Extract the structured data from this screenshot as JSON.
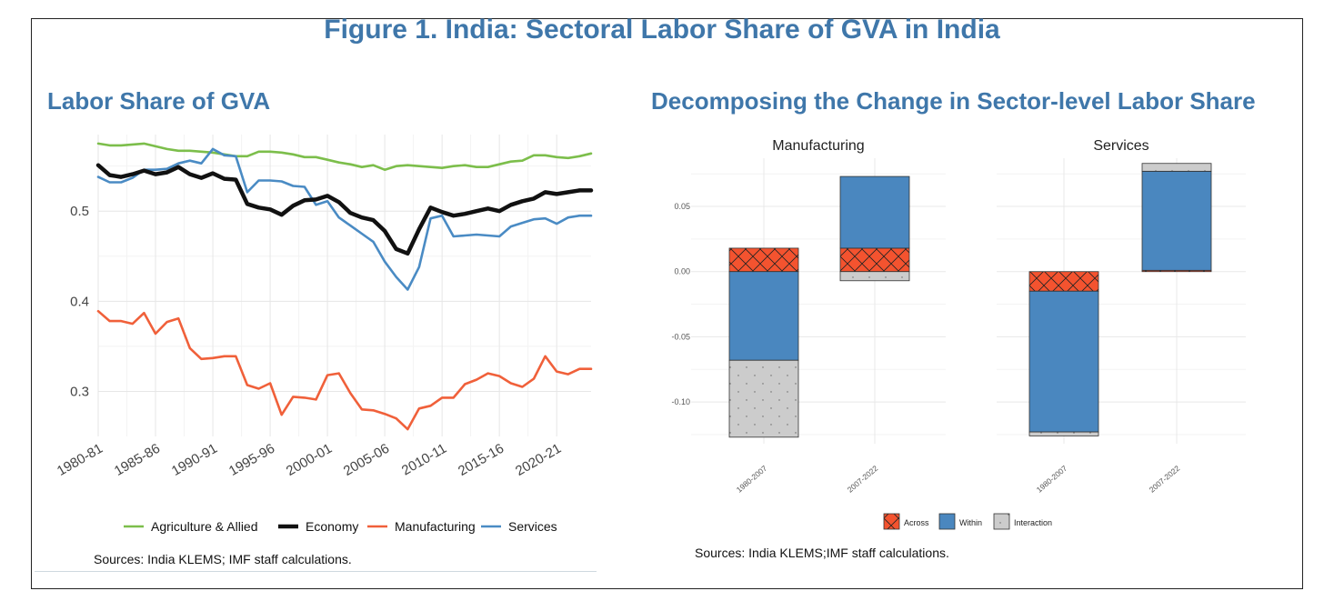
{
  "figure": {
    "title": "Figure 1. India: Sectoral Labor Share of GVA in India",
    "left_title": "Labor Share of GVA",
    "right_title": "Decomposing the Change in Sector-level Labor Share",
    "left_source": "Sources: India KLEMS; IMF staff calculations.",
    "right_source": "Sources: India KLEMS;IMF staff calculations."
  },
  "chart_data": [
    {
      "type": "line",
      "x_tick_labels": [
        "1980-81",
        "1985-86",
        "1990-91",
        "1995-96",
        "2000-01",
        "2005-06",
        "2010-11",
        "2015-16",
        "2020-21"
      ],
      "x_tick_years": [
        1980,
        1985,
        1990,
        1995,
        2000,
        2005,
        2010,
        2015,
        2020
      ],
      "x": [
        1980,
        1981,
        1982,
        1983,
        1984,
        1985,
        1986,
        1987,
        1988,
        1989,
        1990,
        1991,
        1992,
        1993,
        1994,
        1995,
        1996,
        1997,
        1998,
        1999,
        2000,
        2001,
        2002,
        2003,
        2004,
        2005,
        2006,
        2007,
        2008,
        2009,
        2010,
        2011,
        2012,
        2013,
        2014,
        2015,
        2016,
        2017,
        2018,
        2019,
        2020,
        2021,
        2022,
        2023
      ],
      "xlim": [
        1980,
        2023
      ],
      "y_ticks": [
        0.3,
        0.4,
        0.5
      ],
      "y_tick_labels": [
        "0.3",
        "0.4",
        "0.5"
      ],
      "ylim": [
        0.25,
        0.585
      ],
      "grid": true,
      "legend_position": "bottom",
      "series": [
        {
          "name": "Agriculture & Allied",
          "color": "#7cbe4b",
          "width": 2.6,
          "values": [
            0.575,
            0.573,
            0.573,
            0.574,
            0.575,
            0.572,
            0.569,
            0.567,
            0.567,
            0.566,
            0.565,
            0.563,
            0.561,
            0.561,
            0.566,
            0.566,
            0.565,
            0.563,
            0.56,
            0.56,
            0.557,
            0.554,
            0.552,
            0.549,
            0.551,
            0.546,
            0.55,
            0.551,
            0.55,
            0.549,
            0.548,
            0.55,
            0.551,
            0.549,
            0.549,
            0.552,
            0.555,
            0.556,
            0.562,
            0.562,
            0.56,
            0.559,
            0.561,
            0.564
          ]
        },
        {
          "name": "Economy",
          "color": "#111111",
          "width": 4.5,
          "values": [
            0.551,
            0.54,
            0.538,
            0.541,
            0.545,
            0.541,
            0.543,
            0.549,
            0.541,
            0.537,
            0.542,
            0.536,
            0.535,
            0.508,
            0.504,
            0.502,
            0.496,
            0.506,
            0.512,
            0.513,
            0.517,
            0.51,
            0.498,
            0.493,
            0.49,
            0.478,
            0.458,
            0.453,
            0.48,
            0.504,
            0.499,
            0.495,
            0.497,
            0.5,
            0.503,
            0.5,
            0.507,
            0.511,
            0.514,
            0.521,
            0.519,
            0.521,
            0.523,
            0.523
          ]
        },
        {
          "name": "Manufacturing",
          "color": "#f0603a",
          "width": 2.6,
          "values": [
            0.389,
            0.378,
            0.378,
            0.375,
            0.387,
            0.364,
            0.377,
            0.381,
            0.348,
            0.336,
            0.337,
            0.339,
            0.339,
            0.307,
            0.303,
            0.309,
            0.274,
            0.294,
            0.293,
            0.291,
            0.318,
            0.32,
            0.298,
            0.28,
            0.279,
            0.275,
            0.27,
            0.258,
            0.281,
            0.284,
            0.293,
            0.293,
            0.308,
            0.313,
            0.32,
            0.317,
            0.309,
            0.305,
            0.314,
            0.339,
            0.322,
            0.319,
            0.325,
            0.325
          ]
        },
        {
          "name": "Services",
          "color": "#4a8bc4",
          "width": 2.6,
          "values": [
            0.538,
            0.532,
            0.532,
            0.537,
            0.546,
            0.546,
            0.547,
            0.553,
            0.556,
            0.553,
            0.569,
            0.562,
            0.561,
            0.521,
            0.534,
            0.534,
            0.533,
            0.528,
            0.527,
            0.507,
            0.511,
            0.493,
            0.484,
            0.475,
            0.466,
            0.444,
            0.427,
            0.413,
            0.438,
            0.492,
            0.495,
            0.472,
            0.473,
            0.474,
            0.473,
            0.472,
            0.483,
            0.487,
            0.491,
            0.492,
            0.486,
            0.493,
            0.495,
            0.495
          ]
        }
      ]
    },
    {
      "type": "bar",
      "stacked": true,
      "facets": [
        "Manufacturing",
        "Services"
      ],
      "categories": [
        "1980-2007",
        "2007-2022"
      ],
      "y_ticks": [
        0.05,
        0.0,
        -0.05,
        -0.1
      ],
      "y_tick_labels": [
        "0.05",
        "0.00",
        "-0.05",
        "-0.10"
      ],
      "ylim": [
        -0.132,
        0.087
      ],
      "grid": true,
      "legend_position": "bottom",
      "series": [
        {
          "name": "Across",
          "color": "#f4532f",
          "pattern": "crosshatch",
          "values": {
            "Manufacturing": [
              0.018,
              0.018
            ],
            "Services": [
              -0.015,
              0.001
            ]
          }
        },
        {
          "name": "Within",
          "color": "#4a87bf",
          "pattern": "none",
          "values": {
            "Manufacturing": [
              -0.068,
              0.055
            ],
            "Services": [
              -0.108,
              0.076
            ]
          }
        },
        {
          "name": "Interaction",
          "color": "#cccccc",
          "pattern": "dots",
          "values": {
            "Manufacturing": [
              -0.059,
              -0.007
            ],
            "Services": [
              -0.003,
              0.006
            ]
          }
        }
      ]
    }
  ]
}
